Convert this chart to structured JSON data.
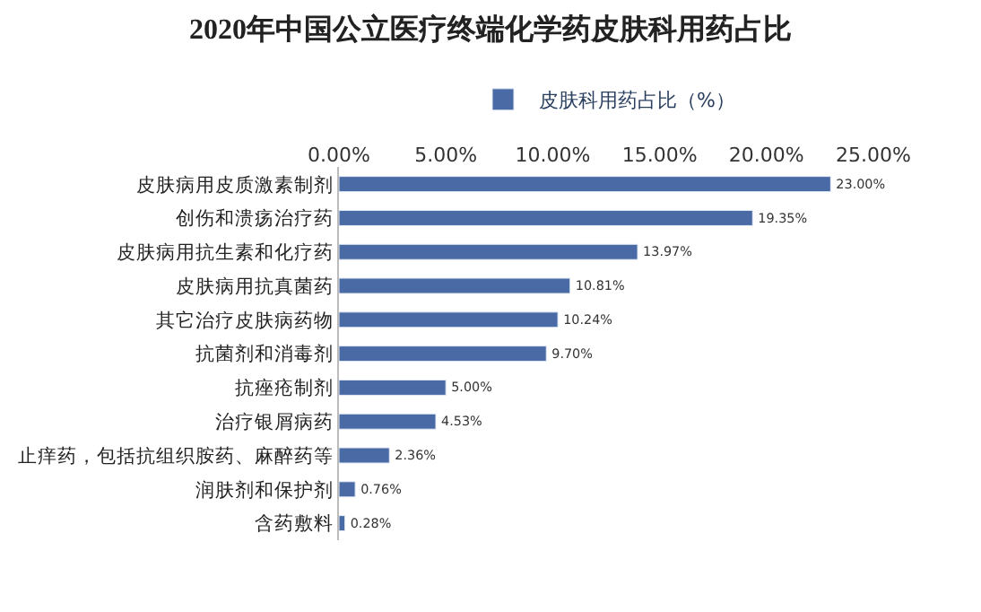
{
  "chart_data": {
    "type": "bar",
    "orientation": "horizontal",
    "title": "2020年中国公立医疗终端化学药皮肤科用药占比",
    "categories": [
      "皮肤病用皮质激素制剂",
      "创伤和溃疡治疗药",
      "皮肤病用抗生素和化疗药",
      "皮肤病用抗真菌药",
      "其它治疗皮肤病药物",
      "抗菌剂和消毒剂",
      "抗痤疮制剂",
      "治疗银屑病药",
      "止痒药，包括抗组织胺药、麻醉药等",
      "润肤剂和保护剂",
      "含药敷料"
    ],
    "series": [
      {
        "name": "皮肤科用药占比（%）",
        "color": "#4a6aa5",
        "values": [
          23.0,
          19.35,
          13.97,
          10.81,
          10.24,
          9.7,
          5.0,
          4.53,
          2.36,
          0.76,
          0.28
        ],
        "value_labels": [
          "23.00%",
          "19.35%",
          "13.97%",
          "10.81%",
          "10.24%",
          "9.70%",
          "5.00%",
          "4.53%",
          "2.36%",
          "0.76%",
          "0.28%"
        ]
      }
    ],
    "xlim": [
      0,
      25
    ],
    "xticks": [
      {
        "value": 0,
        "label": "0.00%"
      },
      {
        "value": 5,
        "label": "5.00%"
      },
      {
        "value": 10,
        "label": "10.00%"
      },
      {
        "value": 15,
        "label": "15.00%"
      },
      {
        "value": 20,
        "label": "20.00%"
      },
      {
        "value": 25,
        "label": "25.00%"
      }
    ],
    "legend": "top"
  }
}
